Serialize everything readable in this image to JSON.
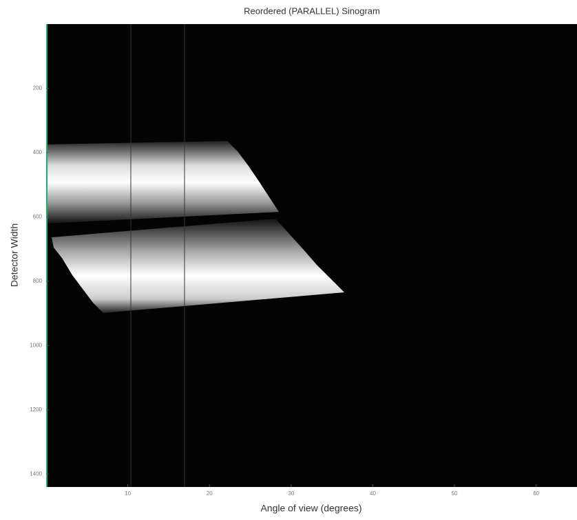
{
  "chart_data": {
    "type": "image",
    "title": "Reordered (PARALLEL) Sinogram",
    "xlabel": "Angle of view (degrees)",
    "ylabel": "Detector Width",
    "xlim": [
      0,
      65
    ],
    "xticks": [
      10,
      20,
      30,
      40,
      50,
      60
    ],
    "ylim": [
      0,
      1440
    ],
    "yticks": [
      200,
      400,
      600,
      800,
      1000,
      1200,
      1400
    ],
    "y_inverted": true
  }
}
